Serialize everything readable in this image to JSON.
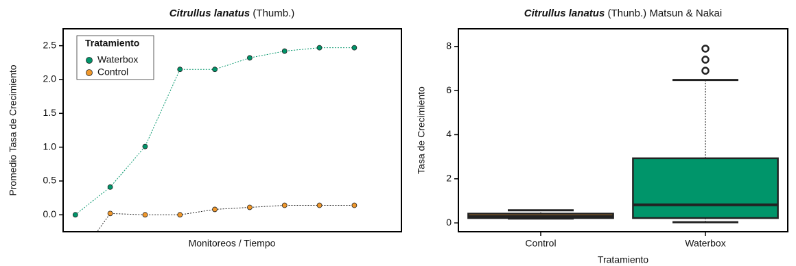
{
  "chart_data": [
    {
      "type": "line",
      "title": {
        "italic": "Citrullus lanatus",
        "rest": "(Thumb.)"
      },
      "xlabel": "Monitoreos / Tiempo",
      "ylabel": "Promedio Tasa de Crecimiento",
      "x": [
        1,
        2,
        3,
        4,
        5,
        6,
        7,
        8,
        9
      ],
      "xlim": [
        0.65,
        10.35
      ],
      "ylim": [
        -0.25,
        2.75
      ],
      "yticks": [
        {
          "value": 0,
          "label": "0.0"
        },
        0.5,
        {
          "value": 1,
          "label": "1.0"
        },
        1.5,
        {
          "value": 2,
          "label": "2.0"
        },
        2.5
      ],
      "legend": {
        "title": "Tratamiento",
        "position": "upper left"
      },
      "series": [
        {
          "name": "Waterbox",
          "color": "#00956a",
          "values": [
            0,
            0.41,
            1.01,
            2.15,
            2.15,
            2.32,
            2.42,
            2.47,
            2.47
          ]
        },
        {
          "name": "Control",
          "color": "#f0982c",
          "values": [
            -0.7,
            0.02,
            0,
            0,
            0.08,
            0.11,
            0.14,
            0.14,
            0.14
          ]
        }
      ]
    },
    {
      "type": "box",
      "title": {
        "italic": "Citrullus lanatus",
        "rest": "(Thunb.) Matsun & Nakai"
      },
      "xlabel": "Tratamiento",
      "ylabel": "Tasa de Crecimiento",
      "ylim": [
        -0.4,
        8.8
      ],
      "yticks": [
        0,
        2,
        4,
        6,
        8
      ],
      "categories": [
        "Control",
        "Waterbox"
      ],
      "boxes": [
        {
          "color": "#f0982c",
          "whislo": 0.2,
          "q1": 0.22,
          "median": 0.3,
          "q3": 0.42,
          "whishi": 0.57,
          "fliers": []
        },
        {
          "color": "#00956a",
          "whislo": 0.03,
          "q1": 0.22,
          "median": 0.82,
          "q3": 2.93,
          "whishi": 6.48,
          "fliers": [
            6.9,
            7.4,
            7.9
          ]
        }
      ]
    }
  ]
}
